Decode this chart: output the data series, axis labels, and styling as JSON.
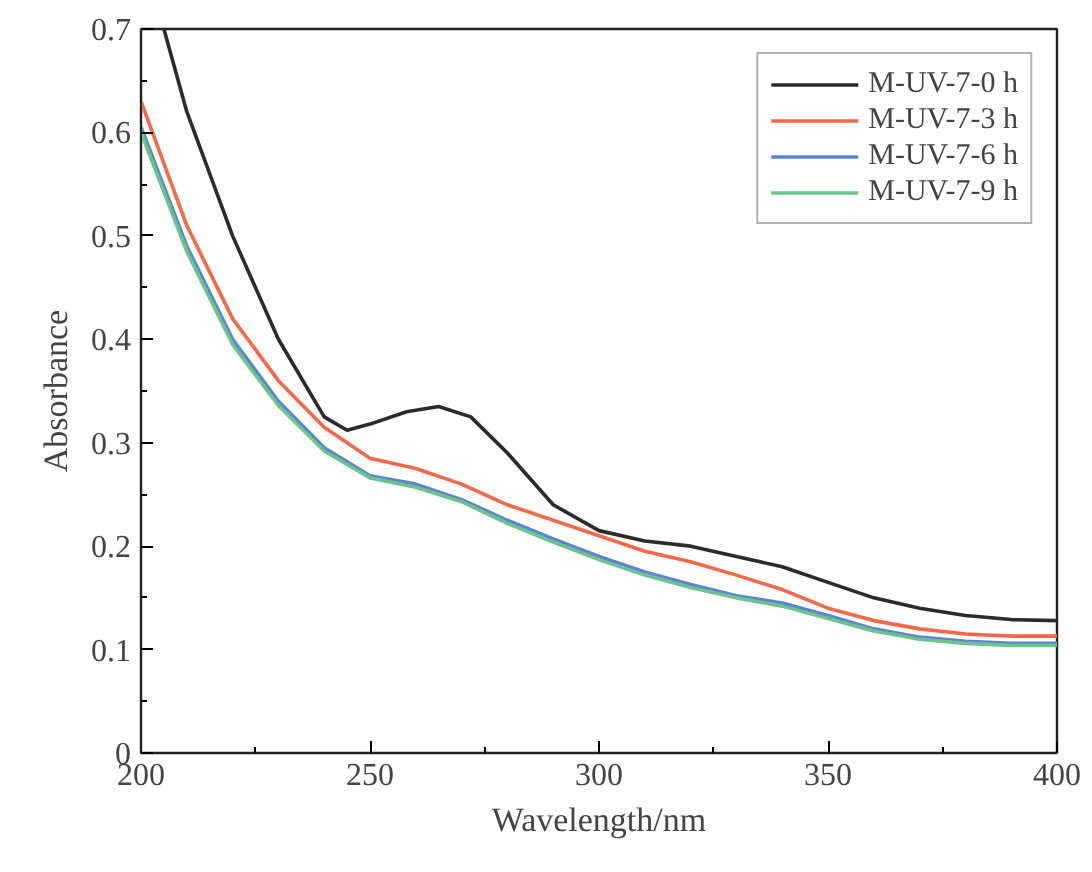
{
  "chart_data": {
    "type": "line",
    "xlabel": "Wavelength/nm",
    "ylabel": "Absorbance",
    "xlim": [
      200,
      400
    ],
    "ylim": [
      0,
      0.7
    ],
    "xticks": [
      200,
      250,
      300,
      350,
      400
    ],
    "yticks": [
      0,
      0.1,
      0.2,
      0.3,
      0.4,
      0.5,
      0.6,
      0.7
    ],
    "legend": "top right",
    "grid": false,
    "series": [
      {
        "name": "M-UV-7-0 h",
        "color": "#2b2b2b",
        "x": [
          205,
          210,
          220,
          230,
          240,
          245,
          250,
          258,
          265,
          272,
          280,
          290,
          300,
          310,
          320,
          330,
          340,
          350,
          360,
          370,
          380,
          390,
          400
        ],
        "values": [
          0.7,
          0.62,
          0.5,
          0.4,
          0.325,
          0.312,
          0.318,
          0.33,
          0.335,
          0.325,
          0.29,
          0.24,
          0.215,
          0.205,
          0.2,
          0.19,
          0.18,
          0.165,
          0.15,
          0.14,
          0.133,
          0.129,
          0.128
        ]
      },
      {
        "name": "M-UV-7-3 h",
        "color": "#f4694b",
        "x": [
          200,
          210,
          220,
          230,
          240,
          250,
          260,
          270,
          280,
          290,
          300,
          310,
          320,
          330,
          340,
          350,
          360,
          370,
          380,
          390,
          400
        ],
        "values": [
          0.63,
          0.51,
          0.42,
          0.36,
          0.315,
          0.285,
          0.275,
          0.26,
          0.24,
          0.225,
          0.21,
          0.195,
          0.185,
          0.172,
          0.158,
          0.14,
          0.128,
          0.12,
          0.115,
          0.113,
          0.113
        ]
      },
      {
        "name": "M-UV-7-6 h",
        "color": "#5b84d6",
        "x": [
          200,
          210,
          220,
          230,
          240,
          250,
          260,
          270,
          280,
          290,
          300,
          310,
          320,
          330,
          340,
          350,
          360,
          370,
          380,
          390,
          400
        ],
        "values": [
          0.605,
          0.49,
          0.4,
          0.34,
          0.295,
          0.268,
          0.26,
          0.245,
          0.225,
          0.207,
          0.19,
          0.175,
          0.163,
          0.152,
          0.145,
          0.133,
          0.12,
          0.112,
          0.108,
          0.106,
          0.106
        ]
      },
      {
        "name": "M-UV-7-9 h",
        "color": "#6cc48a",
        "x": [
          200,
          210,
          220,
          230,
          240,
          250,
          260,
          270,
          280,
          290,
          300,
          310,
          320,
          330,
          340,
          350,
          360,
          370,
          380,
          390,
          400
        ],
        "values": [
          0.6,
          0.485,
          0.395,
          0.336,
          0.292,
          0.266,
          0.257,
          0.243,
          0.222,
          0.204,
          0.187,
          0.172,
          0.16,
          0.15,
          0.142,
          0.13,
          0.118,
          0.11,
          0.106,
          0.104,
          0.104
        ]
      }
    ]
  }
}
